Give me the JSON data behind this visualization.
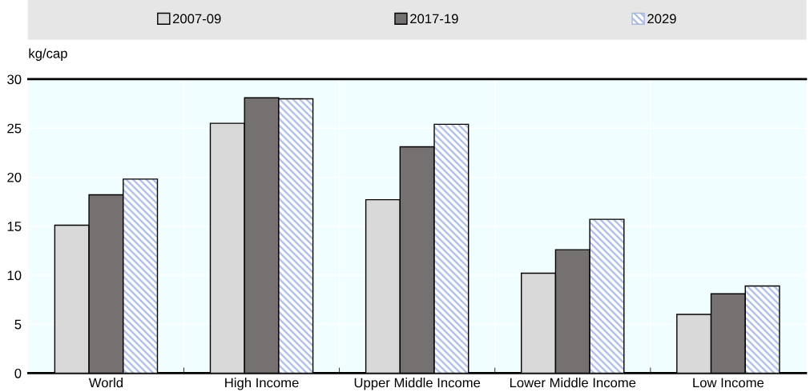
{
  "chart_data": {
    "type": "bar",
    "ylabel": "kg/cap",
    "categories": [
      "World",
      "High Income",
      "Upper Middle Income",
      "Lower Middle Income",
      "Low Income"
    ],
    "series": [
      {
        "name": "2007-09",
        "color": "#d9d9d9",
        "values": [
          15.1,
          25.5,
          17.7,
          10.2,
          6.0
        ]
      },
      {
        "name": "2017-19",
        "color": "#767171",
        "values": [
          18.2,
          28.1,
          23.1,
          12.6,
          8.1
        ]
      },
      {
        "name": "2029",
        "color": "#a4b6e4",
        "values": [
          19.8,
          28.0,
          25.4,
          15.7,
          8.9
        ]
      }
    ],
    "ylim": [
      0,
      30
    ],
    "yticks": [
      0,
      5,
      10,
      15,
      20,
      25,
      30
    ],
    "grid": true,
    "legend": "top"
  }
}
